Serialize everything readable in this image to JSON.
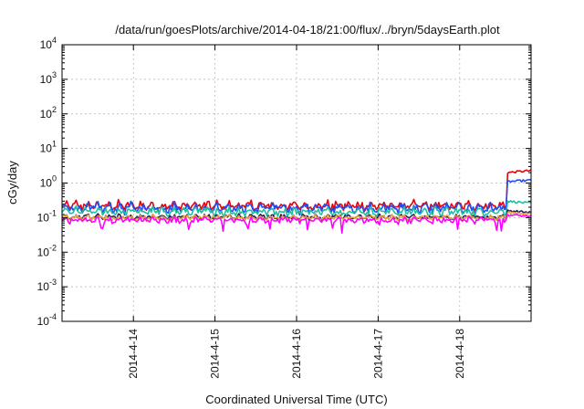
{
  "chart_data": {
    "type": "line",
    "title": "/data/run/goesPlots/archive/2014-04-18/21:00/flux/../bryn/5daysEarth.plot",
    "xlabel": "Coordinated Universal Time (UTC)",
    "ylabel": "cGy/day",
    "y_scale": "log",
    "ylim_exponents": [
      -4,
      4
    ],
    "y_ticks": [
      {
        "base": "10",
        "exp": "-4",
        "value": 0.0001
      },
      {
        "base": "10",
        "exp": "-3",
        "value": 0.001
      },
      {
        "base": "10",
        "exp": "-2",
        "value": 0.01
      },
      {
        "base": "10",
        "exp": "-1",
        "value": 0.1
      },
      {
        "base": "10",
        "exp": "0",
        "value": 1
      },
      {
        "base": "10",
        "exp": "1",
        "value": 10
      },
      {
        "base": "10",
        "exp": "2",
        "value": 100
      },
      {
        "base": "10",
        "exp": "3",
        "value": 1000
      },
      {
        "base": "10",
        "exp": "4",
        "value": 10000
      }
    ],
    "x_range": [
      "2014-04-13 03:00",
      "2014-04-18 21:00"
    ],
    "x_ticks": [
      "2014-4-14",
      "2014-4-15",
      "2014-4-16",
      "2014-4-17",
      "2014-4-18"
    ],
    "grid": true,
    "series": [
      {
        "color": "#e8000b",
        "baseline": 0.22,
        "jitter": 0.18,
        "step_time": "2014-04-18 14:00",
        "step_value": 2.0,
        "step_end": 2.3,
        "dips": false
      },
      {
        "color": "#1f4ef2",
        "baseline": 0.19,
        "jitter": 0.2,
        "step_time": "2014-04-18 14:00",
        "step_value": 1.1,
        "step_end": 1.2,
        "dips": false
      },
      {
        "color": "#1fbf9f",
        "baseline": 0.15,
        "jitter": 0.16,
        "step_time": "2014-04-18 14:00",
        "step_value": 0.3,
        "step_end": 0.26,
        "dips": false
      },
      {
        "color": "#2a1e5c",
        "baseline": 0.105,
        "jitter": 0.1,
        "step_time": "2014-04-18 14:00",
        "step_value": 0.16,
        "step_end": 0.14,
        "dips": false
      },
      {
        "color": "#e8a23a",
        "baseline": 0.1,
        "jitter": 0.1,
        "step_time": "2014-04-18 14:00",
        "step_value": 0.14,
        "step_end": 0.13,
        "dips": false
      },
      {
        "color": "#ff00ff",
        "baseline": 0.085,
        "jitter": 0.12,
        "step_time": "2014-04-18 14:00",
        "step_value": 0.12,
        "step_end": 0.11,
        "dips": true
      }
    ]
  }
}
